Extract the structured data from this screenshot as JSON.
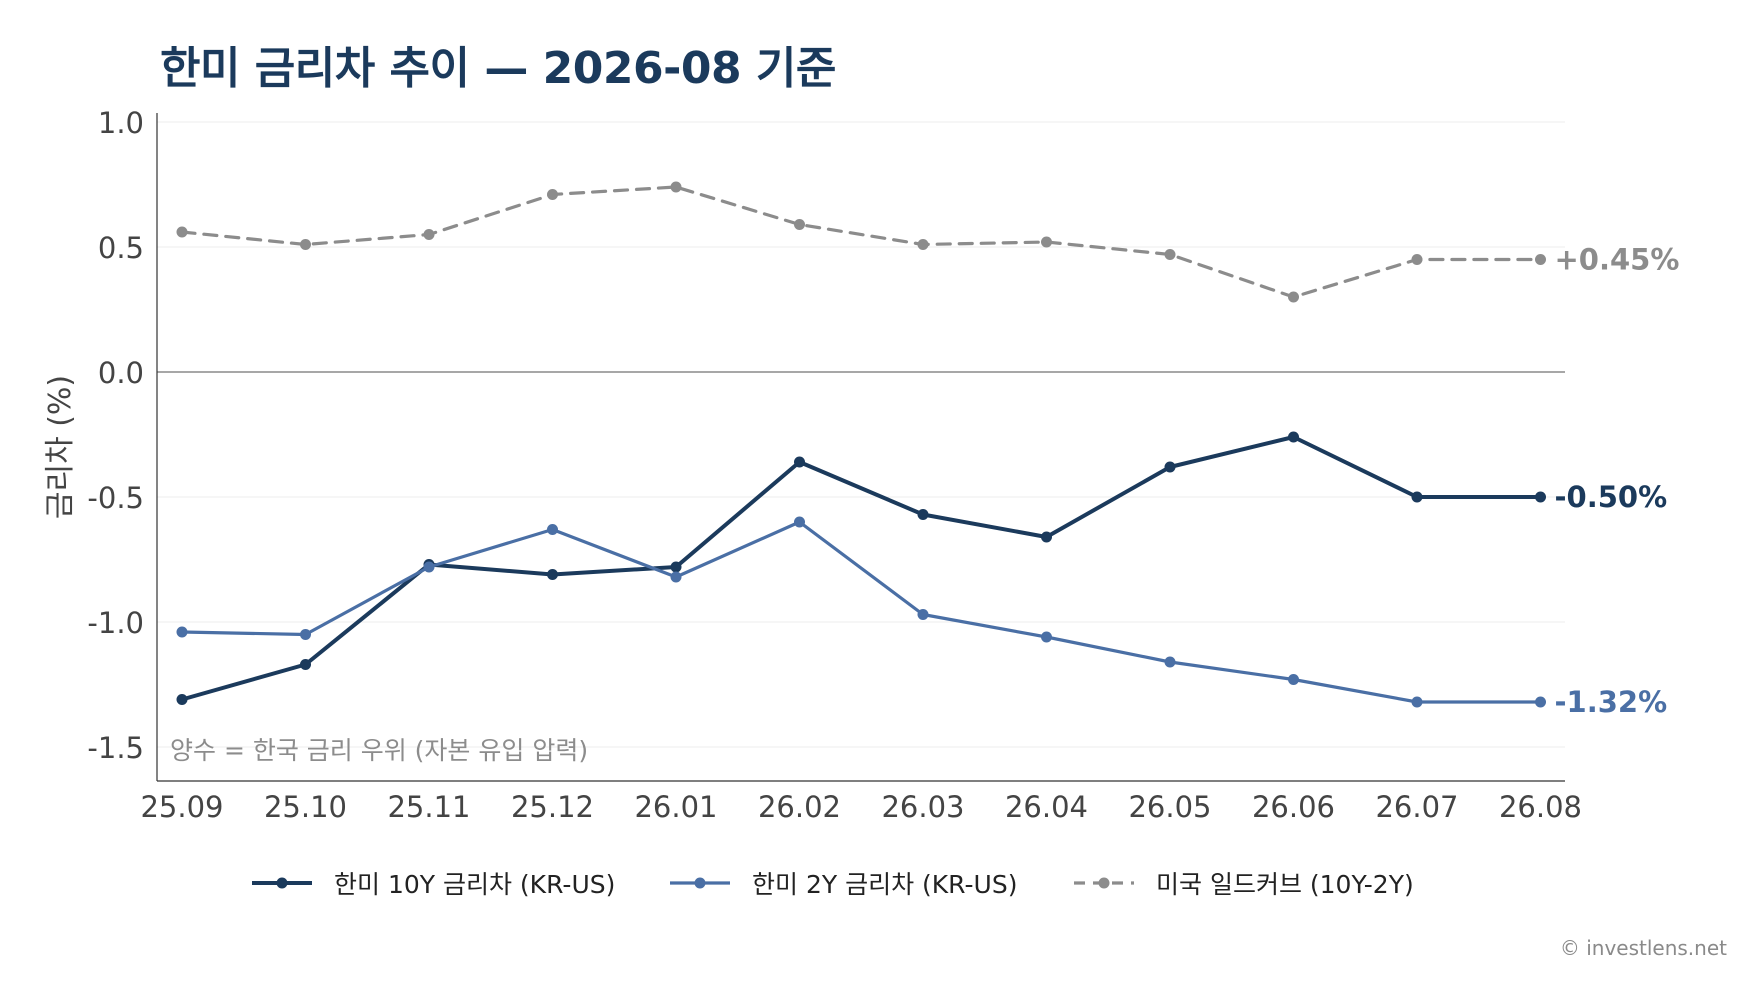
{
  "colors": {
    "series_10y": "#1b3a5c",
    "series_2y": "#4a6fa5",
    "series_curve": "#8c8c8c",
    "grid": "#ececec",
    "zero_line": "#8a8a8a",
    "axis": "#333333",
    "tick_text": "#444444",
    "annotation": "#8c8c8c",
    "title": "#1b3a5c"
  },
  "watermark": "© investlens.net",
  "chart_data": {
    "type": "line",
    "title": "한미 금리차 추이 — 2026-08 기준",
    "xlabel": "",
    "ylabel": "금리차 (%)",
    "categories": [
      "25.09",
      "25.10",
      "25.11",
      "25.12",
      "26.01",
      "26.02",
      "26.03",
      "26.04",
      "26.05",
      "26.06",
      "26.07",
      "26.08"
    ],
    "ylim": [
      -1.6,
      1.05
    ],
    "yticks": [
      1.0,
      0.5,
      0.0,
      -0.5,
      -1.0,
      -1.5
    ],
    "ytick_labels": [
      "1.0",
      "0.5",
      "0.0",
      "-0.5",
      "-1.0",
      "-1.5"
    ],
    "grid": true,
    "legend_position": "bottom-center",
    "annotation": "양수 = 한국 금리 우위 (자본 유입 압력)",
    "series": [
      {
        "name": "한미 10Y 금리차 (KR-US)",
        "style": "solid",
        "values": [
          -1.31,
          -1.17,
          -0.77,
          -0.81,
          -0.78,
          -0.36,
          -0.57,
          -0.66,
          -0.38,
          -0.26,
          -0.5,
          -0.5
        ],
        "end_label": "-0.50%"
      },
      {
        "name": "한미 2Y 금리차 (KR-US)",
        "style": "solid",
        "values": [
          -1.04,
          -1.05,
          -0.78,
          -0.63,
          -0.82,
          -0.6,
          -0.97,
          -1.06,
          -1.16,
          -1.23,
          -1.32,
          -1.32
        ],
        "end_label": "-1.32%"
      },
      {
        "name": "미국 일드커브 (10Y-2Y)",
        "style": "dashed",
        "values": [
          0.56,
          0.51,
          0.55,
          0.71,
          0.74,
          0.59,
          0.51,
          0.52,
          0.47,
          0.3,
          0.45,
          0.45
        ],
        "end_label": "+0.45%"
      }
    ]
  }
}
